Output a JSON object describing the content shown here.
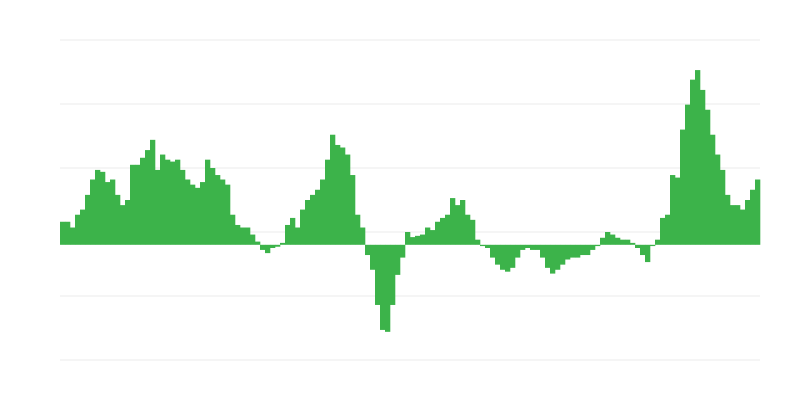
{
  "chart_data": {
    "type": "bar",
    "color": "#3cb34a",
    "grid": true,
    "ylim": [
      -180,
      320
    ],
    "yticks": [
      -180,
      -80,
      20,
      120,
      220,
      320
    ],
    "values": [
      36,
      36,
      27,
      47,
      55,
      78,
      102,
      117,
      114,
      98,
      102,
      78,
      62,
      70,
      125,
      125,
      136,
      148,
      164,
      117,
      141,
      133,
      130,
      133,
      117,
      102,
      94,
      89,
      98,
      133,
      120,
      109,
      102,
      94,
      47,
      31,
      27,
      27,
      16,
      5,
      -8,
      -13,
      -5,
      -3,
      3,
      31,
      42,
      27,
      55,
      70,
      78,
      86,
      102,
      133,
      172,
      156,
      152,
      141,
      109,
      47,
      27,
      -16,
      -39,
      -94,
      -133,
      -136,
      -94,
      -47,
      -20,
      20,
      12,
      14,
      16,
      27,
      23,
      36,
      42,
      47,
      73,
      62,
      70,
      47,
      39,
      8,
      -2,
      -5,
      -20,
      -31,
      -39,
      -42,
      -36,
      -20,
      -8,
      -5,
      -8,
      -8,
      -20,
      -36,
      -45,
      -39,
      -31,
      -23,
      -20,
      -20,
      -16,
      -16,
      -8,
      -2,
      11,
      20,
      16,
      11,
      8,
      8,
      3,
      -5,
      -16,
      -27,
      -2,
      8,
      42,
      47,
      109,
      105,
      180,
      219,
      258,
      273,
      242,
      211,
      172,
      141,
      117,
      78,
      62,
      62,
      55,
      70,
      86,
      102
    ]
  }
}
